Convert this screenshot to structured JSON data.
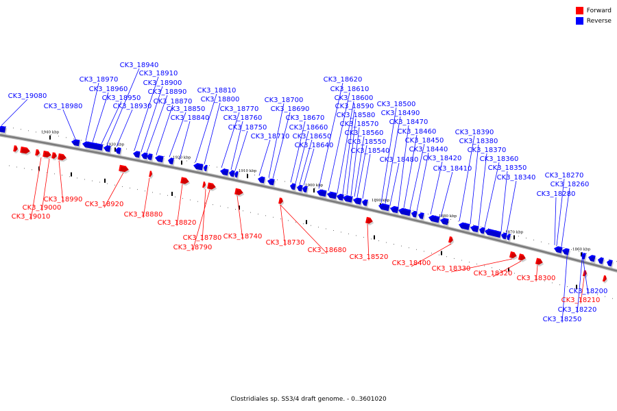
{
  "caption": "Clostridiales sp. SS3/4 draft genome. - 0..3601020",
  "legend": [
    {
      "label": "Forward",
      "color": "#ff0000"
    },
    {
      "label": "Reverse",
      "color": "#0000ff"
    }
  ],
  "colors": {
    "forward": "#ff0000",
    "reverse": "#0000ff",
    "backbone": "#7a7a7a"
  },
  "scale_ticks": [
    "1940 kbp",
    "1930 kbp",
    "1920 kbp",
    "1910 kbp",
    "1900 kbp",
    "1890 kbp",
    "1880 kbp",
    "1870 kbp",
    "1860 kbp"
  ],
  "genes_reverse": [
    "CK3_19080",
    "CK3_18980",
    "CK3_18970",
    "CK3_18960",
    "CK3_18950",
    "CK3_18940",
    "CK3_18930",
    "CK3_18910",
    "CK3_18900",
    "CK3_18890",
    "CK3_18870",
    "CK3_18850",
    "CK3_18840",
    "CK3_18810",
    "CK3_18800",
    "CK3_18770",
    "CK3_18760",
    "CK3_18750",
    "CK3_18710",
    "CK3_18700",
    "CK3_18690",
    "CK3_18670",
    "CK3_18660",
    "CK3_18650",
    "CK3_18640",
    "CK3_18620",
    "CK3_18610",
    "CK3_18600",
    "CK3_18590",
    "CK3_18580",
    "CK3_18570",
    "CK3_18560",
    "CK3_18550",
    "CK3_18540",
    "CK3_18500",
    "CK3_18490",
    "CK3_18480",
    "CK3_18470",
    "CK3_18460",
    "CK3_18450",
    "CK3_18440",
    "CK3_18420",
    "CK3_18410",
    "CK3_18390",
    "CK3_18380",
    "CK3_18370",
    "CK3_18360",
    "CK3_18350",
    "CK3_18340",
    "CK3_18270",
    "CK3_18260",
    "CK3_18280",
    "CK3_18200",
    "CK3_18220",
    "CK3_18250"
  ],
  "genes_forward": [
    "CK3_18990",
    "CK3_19000",
    "CK3_19010",
    "CK3_18920",
    "CK3_18880",
    "CK3_18820",
    "CK3_18780",
    "CK3_18790",
    "CK3_18740",
    "CK3_18730",
    "CK3_18680",
    "CK3_18520",
    "CK3_18400",
    "CK3_18330",
    "CK3_18320",
    "CK3_18300",
    "CK3_18210"
  ]
}
